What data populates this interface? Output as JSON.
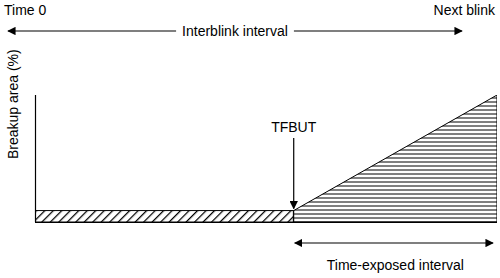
{
  "chart_data": {
    "type": "area",
    "ylabel": "Breakup area (%)",
    "xlim": [
      0,
      100
    ],
    "ylim": [
      0,
      100
    ],
    "tick_labels": false,
    "series": [
      {
        "x": [
          0,
          56
        ],
        "values": [
          9,
          9
        ],
        "color": "#000000"
      },
      {
        "x": [
          56,
          100
        ],
        "values": [
          9,
          100
        ],
        "color": "#000000"
      }
    ],
    "annotations": {
      "top_left": {
        "text": "Time 0",
        "x": 0
      },
      "top_right": {
        "text": "Next blink",
        "x": 100
      },
      "top_interval": {
        "text": "Interblink interval",
        "x": [
          0,
          100
        ]
      },
      "marker": {
        "text": "TFBUT",
        "x": 56
      },
      "bottom_interval": {
        "text": "Time-exposed interval",
        "x": [
          56,
          100
        ]
      }
    }
  }
}
